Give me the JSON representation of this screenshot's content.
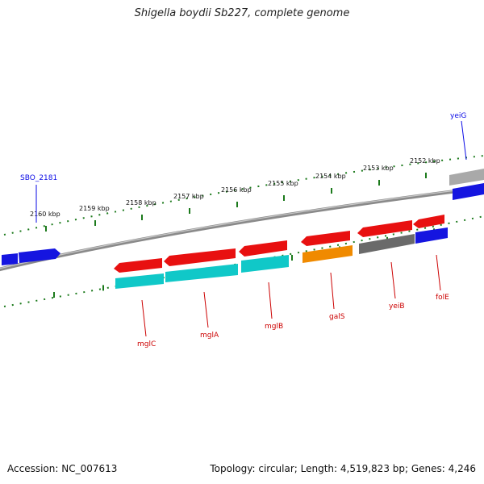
{
  "title": "Shigella boydii Sb227, complete genome",
  "footer": {
    "accession": "Accession: NC_007613",
    "stats": "Topology: circular; Length: 4,519,823 bp; Genes: 4,246"
  },
  "ruler_labels": [
    "2160 kbp",
    "2159 kbp",
    "2158 kbp",
    "2157 kbp",
    "2156 kbp",
    "2155 kbp",
    "2154 kbp",
    "2153 kbp",
    "2152 kbp"
  ],
  "genes": [
    {
      "name": "SBO_2181",
      "strand": "+",
      "color": "#0a0ae6"
    },
    {
      "name": "yeiG",
      "strand": "+",
      "color": "#0a0ae6"
    },
    {
      "name": "mglC",
      "strand": "-",
      "color": "#cc0000"
    },
    {
      "name": "mglA",
      "strand": "-",
      "color": "#cc0000"
    },
    {
      "name": "mglB",
      "strand": "-",
      "color": "#cc0000"
    },
    {
      "name": "galS",
      "strand": "-",
      "color": "#cc0000"
    },
    {
      "name": "yeiB",
      "strand": "-",
      "color": "#cc0000"
    },
    {
      "name": "folE",
      "strand": "-",
      "color": "#cc0000"
    }
  ],
  "colors": {
    "gene_red": "#e81010",
    "gene_blue": "#1515e0",
    "cds_cyan": "#10c8c8",
    "cds_orange": "#f08a00",
    "cds_gray": "#6a6a6a",
    "backbone": "#808080",
    "ruler": "#1c7a1c"
  }
}
